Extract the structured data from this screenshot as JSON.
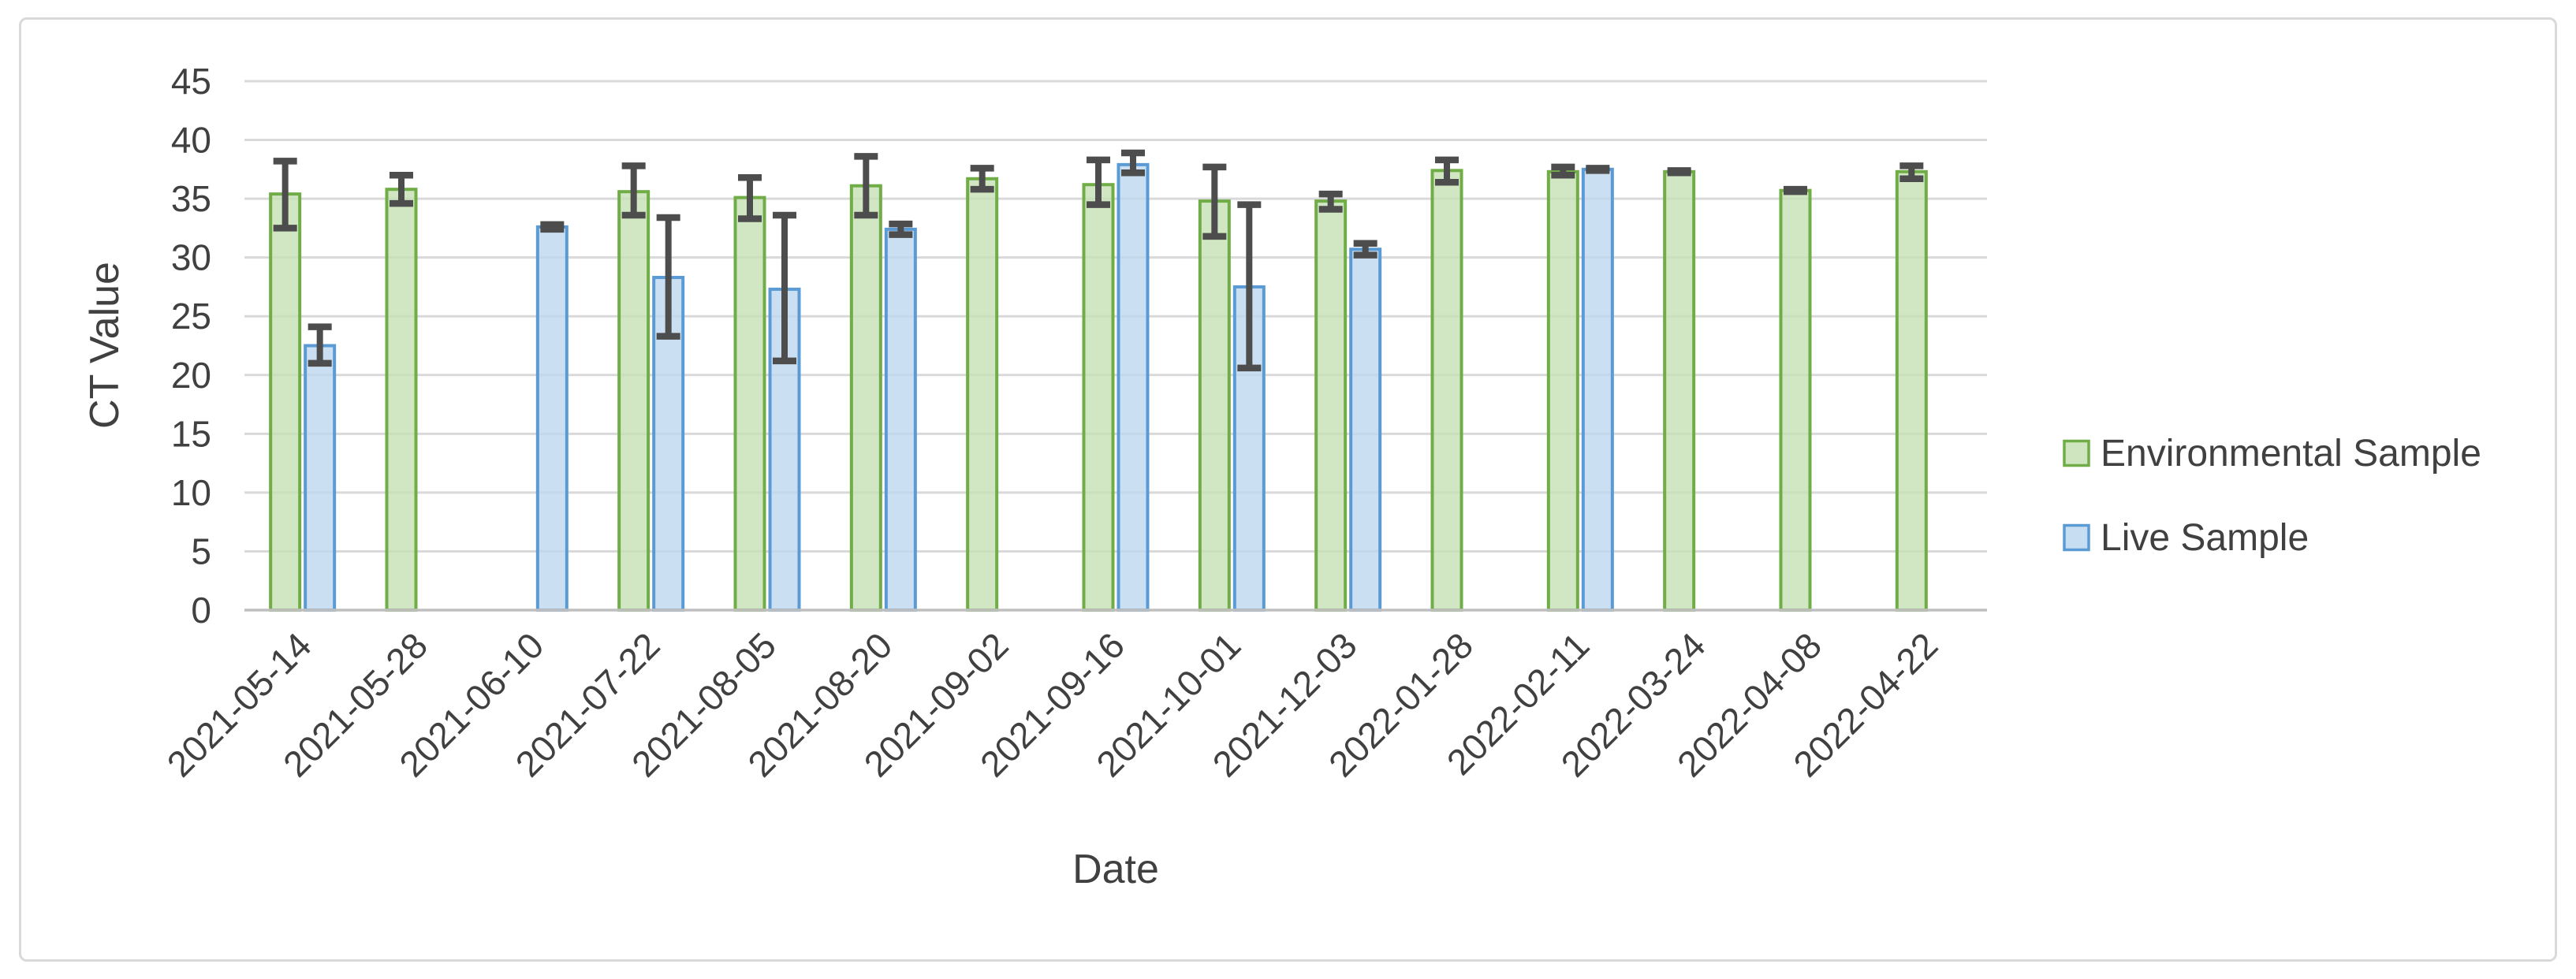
{
  "figure": {
    "background": "#ffffff",
    "frame_border_color": "#d9d9d9"
  },
  "chart_data": {
    "type": "bar",
    "title": "",
    "xlabel": "Date",
    "ylabel": "CT Value",
    "ylim": [
      0,
      45
    ],
    "ytick_step": 5,
    "yticks": [
      0,
      5,
      10,
      15,
      20,
      25,
      30,
      35,
      40,
      45
    ],
    "grid": true,
    "legend_position": "right-middle",
    "categories": [
      "2021-05-14",
      "2021-05-28",
      "2021-06-10",
      "2021-07-22",
      "2021-08-05",
      "2021-08-20",
      "2021-09-02",
      "2021-09-16",
      "2021-10-01",
      "2021-12-03",
      "2022-01-28",
      "2022-02-11",
      "2022-03-24",
      "2022-04-08",
      "2022-04-22"
    ],
    "series": [
      {
        "name": "Environmental Sample",
        "fill_color": "#c5e0b4",
        "border_color": "#70ad47",
        "values": [
          35.4,
          35.8,
          null,
          35.6,
          35.1,
          36.1,
          36.7,
          36.2,
          34.8,
          34.8,
          37.4,
          37.3,
          37.3,
          35.7,
          37.3
        ],
        "error_plus": [
          2.8,
          1.2,
          null,
          2.2,
          1.7,
          2.5,
          0.9,
          2.1,
          2.9,
          0.6,
          0.9,
          0.4,
          0.1,
          0.1,
          0.5
        ],
        "error_minus": [
          2.9,
          1.2,
          null,
          2.0,
          1.8,
          2.5,
          0.9,
          1.7,
          3.0,
          0.7,
          1.0,
          0.3,
          0.1,
          0.1,
          0.6
        ]
      },
      {
        "name": "Live Sample",
        "fill_color": "#bdd7ee",
        "border_color": "#5b9bd5",
        "values": [
          22.5,
          null,
          32.6,
          28.3,
          27.3,
          32.4,
          null,
          37.9,
          27.5,
          30.7,
          null,
          37.5,
          null,
          null,
          null
        ],
        "error_plus": [
          1.6,
          null,
          0.2,
          5.1,
          6.3,
          0.45,
          null,
          1.0,
          7.0,
          0.5,
          null,
          0.1,
          null,
          null,
          null
        ],
        "error_minus": [
          1.5,
          null,
          0.2,
          5.0,
          6.1,
          0.45,
          null,
          0.7,
          6.9,
          0.5,
          null,
          0.1,
          null,
          null,
          null
        ]
      }
    ],
    "error_bar_color": "#4d4d4d",
    "gridline_color": "#d9d9d9",
    "axis_line_color": "#bfbfbf",
    "text_color": "#404040"
  }
}
